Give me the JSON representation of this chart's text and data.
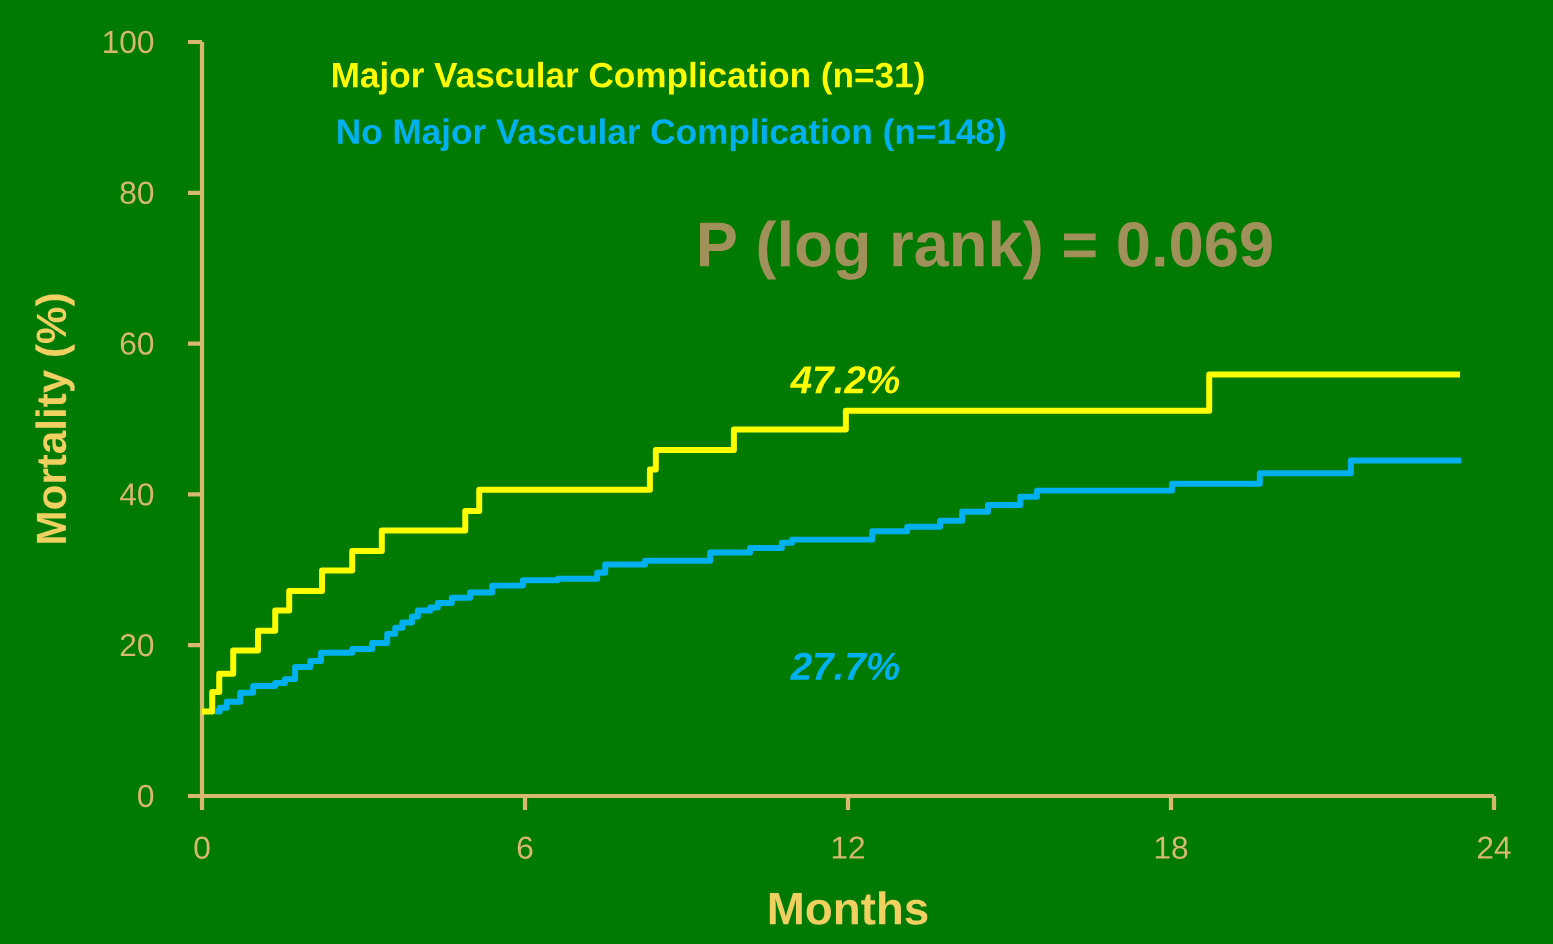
{
  "chart_data": {
    "type": "step",
    "xlabel": "Months",
    "ylabel": "Mortality (%)",
    "xlim": [
      0,
      24
    ],
    "xticks": [
      0,
      6,
      12,
      18,
      24
    ],
    "ylim": [
      0,
      100
    ],
    "yticks": [
      0,
      20,
      40,
      60,
      80,
      100
    ],
    "series": [
      {
        "name": "Major Vascular Complication (n=31)",
        "color": "#ffff00",
        "x": [
          0,
          0.19,
          0.32,
          0.58,
          1.04,
          1.36,
          1.62,
          2.23,
          2.79,
          3.34,
          4.89,
          5.15,
          8.32,
          8.43,
          9.88,
          11.96,
          18.71,
          23.37
        ],
        "values": [
          11.2,
          13.8,
          16.2,
          19.3,
          21.9,
          24.6,
          27.2,
          29.9,
          32.5,
          35.2,
          37.8,
          40.6,
          43.3,
          45.9,
          48.6,
          51.1,
          55.9,
          55.9
        ]
      },
      {
        "name": "No Major Vascular Complication (n=148)",
        "color": "#00b0f0",
        "x": [
          0.24,
          0.33,
          0.46,
          0.71,
          0.95,
          1.36,
          1.54,
          1.73,
          2.01,
          2.21,
          2.79,
          3.16,
          3.44,
          3.59,
          3.72,
          3.9,
          4.01,
          4.24,
          4.38,
          4.64,
          4.98,
          5.39,
          5.96,
          6.61,
          7.34,
          7.49,
          8.23,
          9.44,
          10.18,
          10.77,
          10.96,
          12.45,
          13.1,
          13.71,
          14.12,
          14.6,
          15.2,
          15.51,
          18.02,
          19.65,
          21.34,
          23.39
        ],
        "values": [
          11.2,
          11.7,
          12.5,
          13.7,
          14.6,
          15.0,
          15.5,
          17.1,
          17.9,
          19.0,
          19.5,
          20.3,
          21.5,
          22.3,
          23.0,
          23.8,
          24.6,
          25.0,
          25.6,
          26.3,
          27.0,
          27.9,
          28.6,
          28.8,
          29.6,
          30.7,
          31.2,
          32.3,
          32.9,
          33.6,
          34.0,
          35.1,
          35.7,
          36.5,
          37.7,
          38.6,
          39.7,
          40.5,
          41.4,
          42.8,
          44.5,
          44.5
        ]
      }
    ],
    "annotations": [
      "P (log rank) = 0.069",
      "47.2%",
      "27.7%"
    ]
  }
}
